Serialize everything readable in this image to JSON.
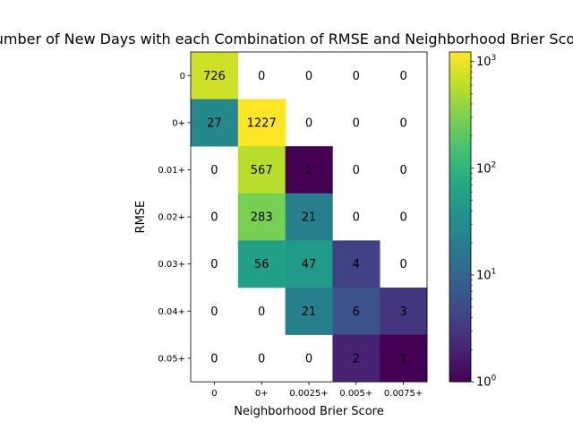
{
  "chart_data": {
    "type": "heatmap",
    "title": "Number of New Days with each Combination of RMSE and Neighborhood Brier Score",
    "xlabel": "Neighborhood Brier Score",
    "ylabel": "RMSE",
    "x_categories": [
      "0",
      "0+",
      "0.0025+",
      "0.005+",
      "0.0075+"
    ],
    "y_categories": [
      "0",
      "0+",
      "0.01+",
      "0.02+",
      "0.03+",
      "0.04+",
      "0.05+"
    ],
    "values": [
      [
        726,
        0,
        0,
        0,
        0
      ],
      [
        27,
        1227,
        0,
        0,
        0
      ],
      [
        0,
        567,
        1,
        0,
        0
      ],
      [
        0,
        283,
        21,
        0,
        0
      ],
      [
        0,
        56,
        47,
        4,
        0
      ],
      [
        0,
        0,
        21,
        6,
        3
      ],
      [
        0,
        0,
        0,
        2,
        1
      ]
    ],
    "colorscale": "viridis",
    "color_scale_type": "log",
    "color_range": [
      1,
      1227
    ],
    "zero_cells": "blank",
    "colorbar": {
      "ticks": [
        {
          "base": "10",
          "exp": "0",
          "value": 1
        },
        {
          "base": "10",
          "exp": "1",
          "value": 10
        },
        {
          "base": "10",
          "exp": "2",
          "value": 100
        },
        {
          "base": "10",
          "exp": "3",
          "value": 1000
        }
      ]
    }
  }
}
